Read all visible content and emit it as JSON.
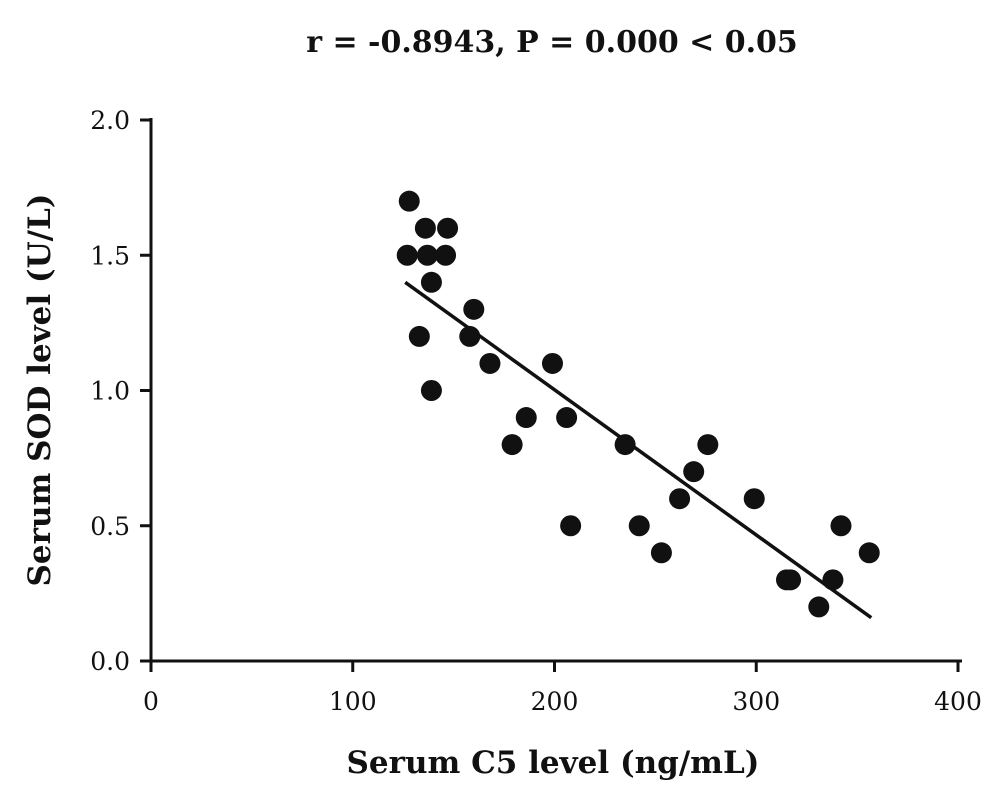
{
  "chart_data": {
    "type": "scatter",
    "title": "r = -0.8943, P = 0.000 < 0.05",
    "xlabel": "Serum C5 level (ng/mL)",
    "ylabel": "Serum SOD level (U/L)",
    "xlim": [
      0,
      400
    ],
    "ylim": [
      0,
      2.0
    ],
    "xticks": [
      "0",
      "100",
      "200",
      "300",
      "400"
    ],
    "yticks": [
      "0.0",
      "0.5",
      "1.0",
      "1.5",
      "2.0"
    ],
    "grid": false,
    "points": [
      {
        "x": 127,
        "y": 1.5
      },
      {
        "x": 128,
        "y": 1.7
      },
      {
        "x": 133,
        "y": 1.2
      },
      {
        "x": 136,
        "y": 1.6
      },
      {
        "x": 137,
        "y": 1.5
      },
      {
        "x": 139,
        "y": 1.4
      },
      {
        "x": 139,
        "y": 1.0
      },
      {
        "x": 146,
        "y": 1.5
      },
      {
        "x": 147,
        "y": 1.6
      },
      {
        "x": 158,
        "y": 1.2
      },
      {
        "x": 160,
        "y": 1.3
      },
      {
        "x": 168,
        "y": 1.1
      },
      {
        "x": 179,
        "y": 0.8
      },
      {
        "x": 186,
        "y": 0.9
      },
      {
        "x": 199,
        "y": 1.1
      },
      {
        "x": 206,
        "y": 0.9
      },
      {
        "x": 208,
        "y": 0.5
      },
      {
        "x": 235,
        "y": 0.8
      },
      {
        "x": 242,
        "y": 0.5
      },
      {
        "x": 253,
        "y": 0.4
      },
      {
        "x": 262,
        "y": 0.6
      },
      {
        "x": 269,
        "y": 0.7
      },
      {
        "x": 276,
        "y": 0.8
      },
      {
        "x": 299,
        "y": 0.6
      },
      {
        "x": 315,
        "y": 0.3
      },
      {
        "x": 317,
        "y": 0.3
      },
      {
        "x": 331,
        "y": 0.2
      },
      {
        "x": 338,
        "y": 0.3
      },
      {
        "x": 342,
        "y": 0.5
      },
      {
        "x": 356,
        "y": 0.4
      }
    ],
    "trendline": {
      "x1": 126,
      "y1": 1.4,
      "x2": 357,
      "y2": 0.16
    }
  }
}
